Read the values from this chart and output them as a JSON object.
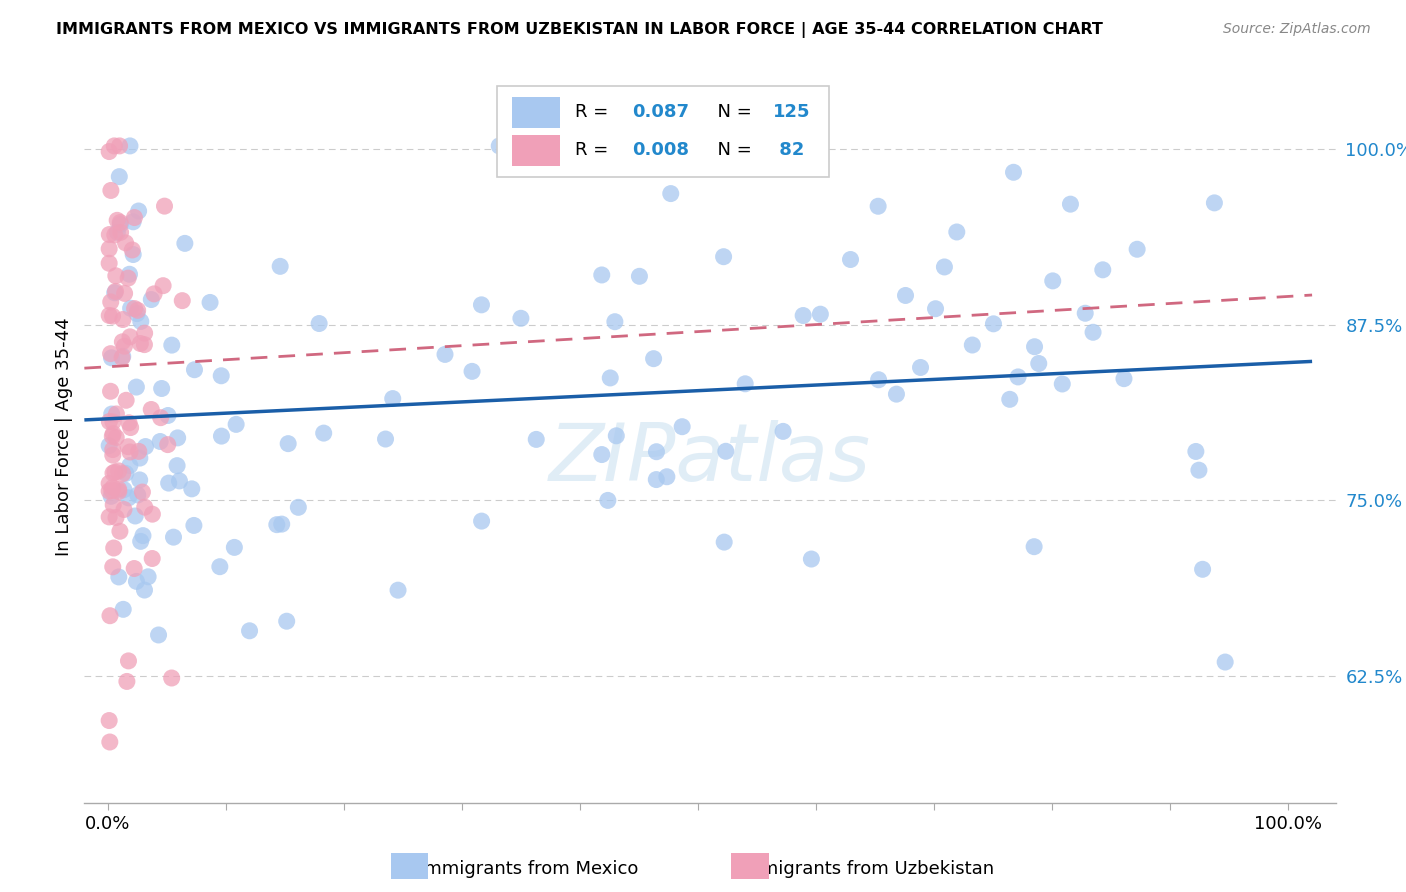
{
  "title": "IMMIGRANTS FROM MEXICO VS IMMIGRANTS FROM UZBEKISTAN IN LABOR FORCE | AGE 35-44 CORRELATION CHART",
  "source": "Source: ZipAtlas.com",
  "ylabel": "In Labor Force | Age 35-44",
  "ytick_labels": [
    "62.5%",
    "75.0%",
    "87.5%",
    "100.0%"
  ],
  "ytick_values": [
    0.625,
    0.75,
    0.875,
    1.0
  ],
  "color_mexico": "#A8C8F0",
  "color_uzbekistan": "#F0A0B8",
  "trendline_mexico_color": "#1A5EA8",
  "trendline_uzbekistan_color": "#D06880",
  "legend_R_mexico": "0.087",
  "legend_N_mexico": "125",
  "legend_R_uzbekistan": "0.008",
  "legend_N_uzbekistan": "82",
  "legend_color": "#2288CC",
  "mexico_seed": 7,
  "uzbekistan_seed": 13
}
